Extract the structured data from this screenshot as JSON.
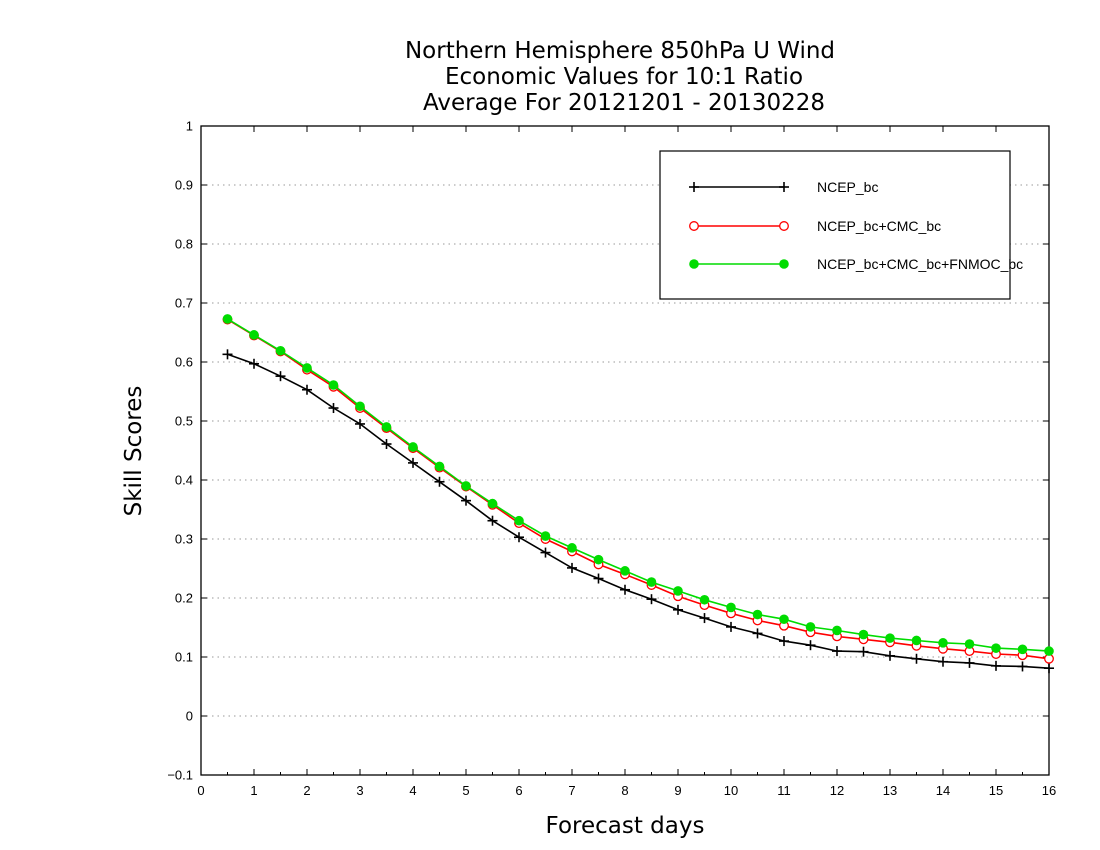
{
  "chart_data": {
    "type": "line",
    "title": [
      "Northern Hemisphere 850hPa U Wind",
      "Economic Values for 10:1 Ratio",
      "Average For 20121201 - 20130228"
    ],
    "xlabel": "Forecast days",
    "ylabel": "Skill Scores",
    "xlim": [
      0,
      16
    ],
    "ylim": [
      -0.1,
      1
    ],
    "x_ticks": [
      0,
      1,
      2,
      3,
      4,
      5,
      6,
      7,
      8,
      9,
      10,
      11,
      12,
      13,
      14,
      15,
      16
    ],
    "y_ticks": [
      -0.1,
      0,
      0.1,
      0.2,
      0.3,
      0.4,
      0.5,
      0.6,
      0.7,
      0.8,
      0.9,
      1
    ],
    "y_tick_labels": [
      "−0.1",
      "0",
      "0.1",
      "0.2",
      "0.3",
      "0.4",
      "0.5",
      "0.6",
      "0.7",
      "0.8",
      "0.9",
      "1"
    ],
    "grid": "horizontal dotted",
    "legend_position": "top-right",
    "x": [
      0.5,
      1,
      1.5,
      2,
      2.5,
      3,
      3.5,
      4,
      4.5,
      5,
      5.5,
      6,
      6.5,
      7,
      7.5,
      8,
      8.5,
      9,
      9.5,
      10,
      10.5,
      11,
      11.5,
      12,
      12.5,
      13,
      13.5,
      14,
      14.5,
      15,
      15.5,
      16
    ],
    "series": [
      {
        "name": "NCEP_bc",
        "color": "#000000",
        "marker": "plus",
        "values": [
          0.613,
          0.597,
          0.576,
          0.553,
          0.522,
          0.495,
          0.461,
          0.429,
          0.397,
          0.365,
          0.331,
          0.303,
          0.277,
          0.251,
          0.233,
          0.214,
          0.198,
          0.18,
          0.166,
          0.151,
          0.14,
          0.127,
          0.12,
          0.11,
          0.109,
          0.102,
          0.097,
          0.092,
          0.09,
          0.085,
          0.084,
          0.081
        ]
      },
      {
        "name": "NCEP_bc+CMC_bc",
        "color": "#ff0000",
        "marker": "open-circle",
        "values": [
          0.672,
          0.645,
          0.618,
          0.587,
          0.558,
          0.522,
          0.488,
          0.454,
          0.421,
          0.389,
          0.358,
          0.327,
          0.3,
          0.279,
          0.257,
          0.24,
          0.222,
          0.203,
          0.188,
          0.174,
          0.162,
          0.153,
          0.142,
          0.135,
          0.13,
          0.125,
          0.119,
          0.114,
          0.11,
          0.105,
          0.103,
          0.097
        ]
      },
      {
        "name": "NCEP_bc+CMC_bc+FNMOC_bc",
        "color": "#00dc00",
        "marker": "filled-circle",
        "values": [
          0.673,
          0.646,
          0.619,
          0.59,
          0.561,
          0.525,
          0.49,
          0.456,
          0.423,
          0.39,
          0.36,
          0.331,
          0.305,
          0.285,
          0.265,
          0.246,
          0.227,
          0.212,
          0.197,
          0.184,
          0.172,
          0.164,
          0.151,
          0.145,
          0.138,
          0.132,
          0.128,
          0.124,
          0.122,
          0.115,
          0.113,
          0.11
        ]
      }
    ]
  }
}
